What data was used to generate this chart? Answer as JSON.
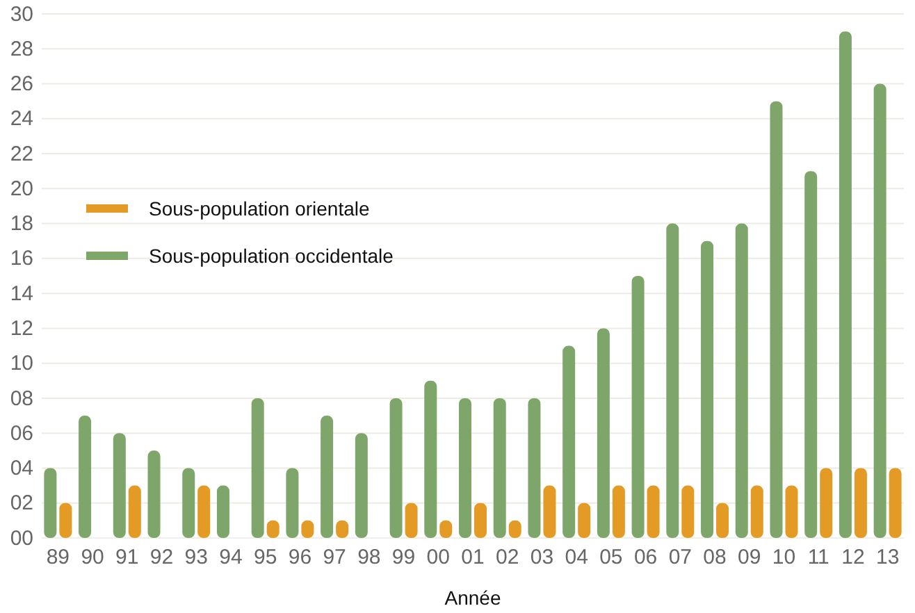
{
  "chart_data": {
    "type": "bar",
    "xlabel": "Année",
    "categories": [
      "89",
      "90",
      "91",
      "92",
      "93",
      "94",
      "95",
      "96",
      "97",
      "98",
      "99",
      "00",
      "01",
      "02",
      "03",
      "04",
      "05",
      "06",
      "07",
      "08",
      "09",
      "10",
      "11",
      "12",
      "13"
    ],
    "series": [
      {
        "name": "Sous-population occidentale",
        "color": "#7fa66a",
        "values": [
          4,
          7,
          6,
          5,
          4,
          3,
          8,
          4,
          7,
          6,
          8,
          9,
          8,
          8,
          8,
          11,
          12,
          15,
          18,
          17,
          18,
          25,
          21,
          29,
          26
        ]
      },
      {
        "name": "Sous-population orientale",
        "color": "#e39b26",
        "values": [
          2,
          null,
          3,
          null,
          3,
          null,
          1,
          1,
          1,
          null,
          2,
          1,
          2,
          1,
          3,
          2,
          3,
          3,
          3,
          2,
          3,
          3,
          4,
          4,
          4
        ]
      }
    ],
    "ylim": [
      0,
      30
    ],
    "yticks": [
      {
        "value": 0,
        "label": "00"
      },
      {
        "value": 2,
        "label": "02"
      },
      {
        "value": 4,
        "label": "04"
      },
      {
        "value": 6,
        "label": "06"
      },
      {
        "value": 8,
        "label": "08"
      },
      {
        "value": 10,
        "label": "10"
      },
      {
        "value": 12,
        "label": "12"
      },
      {
        "value": 14,
        "label": "14"
      },
      {
        "value": 16,
        "label": "16"
      },
      {
        "value": 18,
        "label": "18"
      },
      {
        "value": 20,
        "label": "20"
      },
      {
        "value": 22,
        "label": "22"
      },
      {
        "value": 24,
        "label": "24"
      },
      {
        "value": 26,
        "label": "26"
      },
      {
        "value": 28,
        "label": "28"
      },
      {
        "value": 30,
        "label": "30"
      }
    ],
    "grid": "y",
    "legend": "left"
  }
}
